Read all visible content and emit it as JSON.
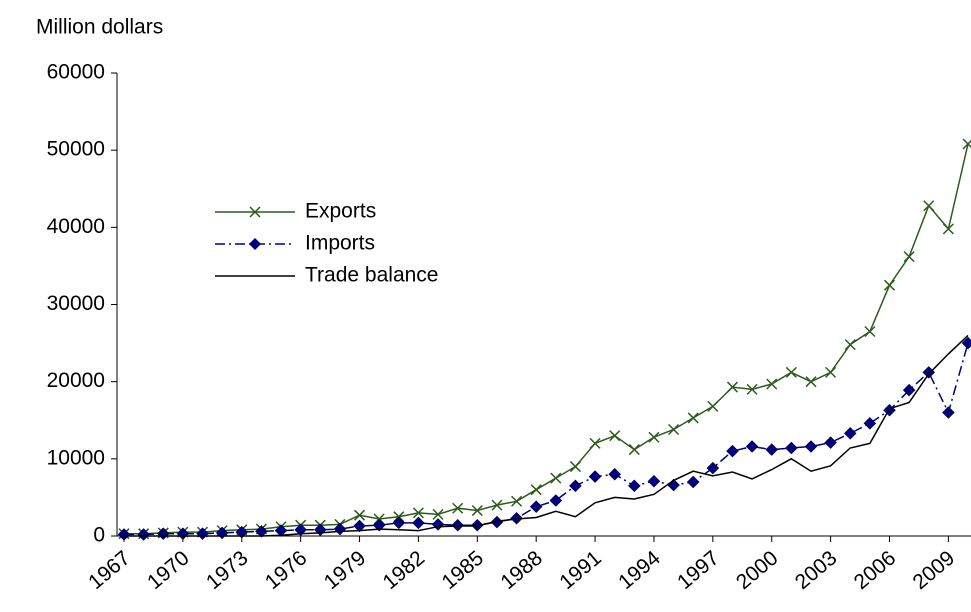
{
  "chart_data": {
    "type": "line",
    "y_label": "Million dollars",
    "x": [
      1967,
      1968,
      1969,
      1970,
      1971,
      1972,
      1973,
      1974,
      1975,
      1976,
      1977,
      1978,
      1979,
      1980,
      1981,
      1982,
      1983,
      1984,
      1985,
      1986,
      1987,
      1988,
      1989,
      1990,
      1991,
      1992,
      1993,
      1994,
      1995,
      1996,
      1997,
      1998,
      1999,
      2000,
      2001,
      2002,
      2003,
      2004,
      2005,
      2006,
      2007,
      2008,
      2009,
      2010
    ],
    "xlim": [
      1967,
      2010
    ],
    "xticks": [
      1967,
      1970,
      1973,
      1976,
      1979,
      1982,
      1985,
      1988,
      1991,
      1994,
      1997,
      2000,
      2003,
      2006,
      2009
    ],
    "ylim": [
      0,
      60000
    ],
    "yticks": [
      0,
      10000,
      20000,
      30000,
      40000,
      50000,
      60000
    ],
    "grid": false,
    "legend": "upper left",
    "series": [
      {
        "name": "Exports",
        "color": "#2e5a1c",
        "marker": "x",
        "dash": "solid",
        "values": [
          300,
          300,
          400,
          500,
          500,
          700,
          800,
          900,
          1200,
          1400,
          1400,
          1500,
          2700,
          2200,
          2500,
          3000,
          2800,
          3600,
          3300,
          4000,
          4500,
          6000,
          7500,
          9000,
          12000,
          13000,
          11200,
          12800,
          13800,
          15300,
          16800,
          19300,
          19000,
          19700,
          21200,
          20000,
          21200,
          24800,
          26500,
          32500,
          36200,
          42800,
          39800,
          50800
        ]
      },
      {
        "name": "Imports",
        "color": "#000080",
        "marker": "diamond",
        "dash": "dashdot",
        "values": [
          200,
          200,
          300,
          300,
          300,
          400,
          500,
          600,
          700,
          800,
          800,
          900,
          1300,
          1400,
          1700,
          1700,
          1500,
          1400,
          1400,
          1800,
          2300,
          3800,
          4600,
          6500,
          7700,
          8000,
          6500,
          7100,
          6600,
          7000,
          8800,
          11000,
          11600,
          11200,
          11400,
          11600,
          12100,
          13300,
          14600,
          16300,
          18900,
          21200,
          16000,
          25000
        ]
      },
      {
        "name": "Trade balance",
        "color": "#000000",
        "marker": "none",
        "dash": "solid",
        "values": [
          0,
          0,
          0,
          0,
          0,
          0,
          0,
          0,
          100,
          300,
          400,
          600,
          700,
          900,
          800,
          700,
          1200,
          1300,
          1300,
          1900,
          2200,
          2400,
          3200,
          2500,
          4300,
          5000,
          4800,
          5400,
          7200,
          8400,
          7800,
          8300,
          7400,
          8600,
          10000,
          8400,
          9100,
          11400,
          12000,
          16500,
          17300,
          21000,
          23600,
          26000
        ]
      }
    ]
  }
}
